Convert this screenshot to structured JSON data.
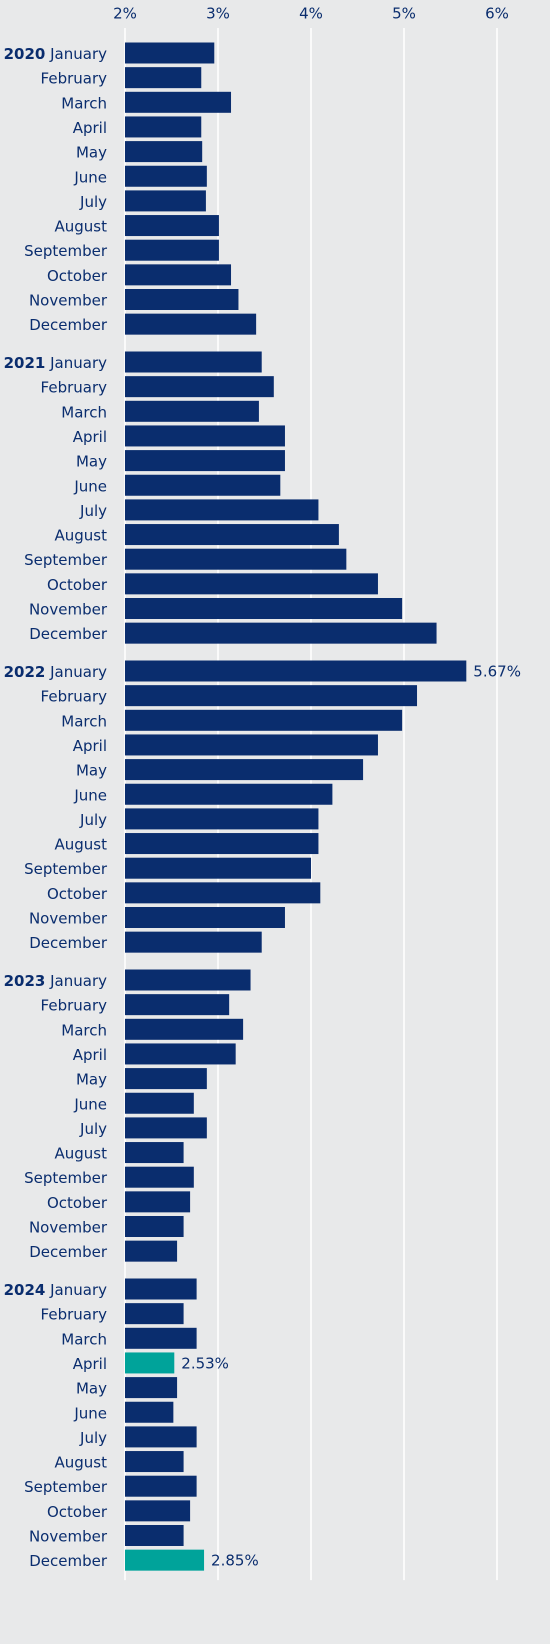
{
  "chart_data": {
    "type": "bar",
    "orientation": "horizontal",
    "color": "#0a2d6e",
    "grid": true,
    "xlim": [
      2,
      6
    ],
    "xticks": [
      {
        "value": 2,
        "label": "2%"
      },
      {
        "value": 3,
        "label": "3%"
      },
      {
        "value": 4,
        "label": "4%"
      },
      {
        "value": 5,
        "label": "5%"
      },
      {
        "value": 6,
        "label": "6%"
      }
    ],
    "groups": [
      {
        "name": "2020",
        "categories": [
          "January",
          "February",
          "March",
          "April",
          "May",
          "June",
          "July",
          "August",
          "September",
          "October",
          "November",
          "December"
        ],
        "values": [
          2.96,
          2.82,
          3.14,
          2.82,
          2.83,
          2.88,
          2.87,
          3.01,
          3.01,
          3.14,
          3.22,
          3.41
        ],
        "colors": [
          "#0a2d6e",
          "#0a2d6e",
          "#0a2d6e",
          "#0a2d6e",
          "#0a2d6e",
          "#0a2d6e",
          "#0a2d6e",
          "#0a2d6e",
          "#0a2d6e",
          "#0a2d6e",
          "#0a2d6e",
          "#0a2d6e"
        ],
        "value_labels": [
          null,
          null,
          null,
          null,
          null,
          null,
          null,
          null,
          null,
          null,
          null,
          null
        ]
      },
      {
        "name": "2021",
        "categories": [
          "January",
          "February",
          "March",
          "April",
          "May",
          "June",
          "July",
          "August",
          "September",
          "October",
          "November",
          "December"
        ],
        "values": [
          3.47,
          3.6,
          3.44,
          3.72,
          3.72,
          3.67,
          4.08,
          4.3,
          4.38,
          4.72,
          4.98,
          5.35
        ],
        "colors": [
          "#0a2d6e",
          "#0a2d6e",
          "#0a2d6e",
          "#0a2d6e",
          "#0a2d6e",
          "#0a2d6e",
          "#0a2d6e",
          "#0a2d6e",
          "#0a2d6e",
          "#0a2d6e",
          "#0a2d6e",
          "#0a2d6e"
        ],
        "value_labels": [
          null,
          null,
          null,
          null,
          null,
          null,
          null,
          null,
          null,
          null,
          null,
          null
        ]
      },
      {
        "name": "2022",
        "categories": [
          "January",
          "February",
          "March",
          "April",
          "May",
          "June",
          "July",
          "August",
          "September",
          "October",
          "November",
          "December"
        ],
        "values": [
          5.67,
          5.14,
          4.98,
          4.72,
          4.56,
          4.23,
          4.08,
          4.08,
          4.0,
          4.1,
          3.72,
          3.47
        ],
        "colors": [
          "#0a2d6e",
          "#0a2d6e",
          "#0a2d6e",
          "#0a2d6e",
          "#0a2d6e",
          "#0a2d6e",
          "#0a2d6e",
          "#0a2d6e",
          "#0a2d6e",
          "#0a2d6e",
          "#0a2d6e",
          "#0a2d6e"
        ],
        "value_labels": [
          "5.67%",
          null,
          null,
          null,
          null,
          null,
          null,
          null,
          null,
          null,
          null,
          null
        ]
      },
      {
        "name": "2023",
        "categories": [
          "January",
          "February",
          "March",
          "April",
          "May",
          "June",
          "July",
          "August",
          "September",
          "October",
          "November",
          "December"
        ],
        "values": [
          3.35,
          3.12,
          3.27,
          3.19,
          2.88,
          2.74,
          2.88,
          2.63,
          2.74,
          2.7,
          2.63,
          2.56
        ],
        "colors": [
          "#0a2d6e",
          "#0a2d6e",
          "#0a2d6e",
          "#0a2d6e",
          "#0a2d6e",
          "#0a2d6e",
          "#0a2d6e",
          "#0a2d6e",
          "#0a2d6e",
          "#0a2d6e",
          "#0a2d6e",
          "#0a2d6e"
        ],
        "value_labels": [
          null,
          null,
          null,
          null,
          null,
          null,
          null,
          null,
          null,
          null,
          null,
          null
        ]
      },
      {
        "name": "2024",
        "categories": [
          "January",
          "February",
          "March",
          "April",
          "May",
          "June",
          "July",
          "August",
          "September",
          "October",
          "November",
          "December"
        ],
        "values": [
          2.77,
          2.63,
          2.77,
          2.53,
          2.56,
          2.52,
          2.77,
          2.63,
          2.77,
          2.7,
          2.63,
          2.85
        ],
        "colors": [
          "#0a2d6e",
          "#0a2d6e",
          "#0a2d6e",
          "#00a39a",
          "#0a2d6e",
          "#0a2d6e",
          "#0a2d6e",
          "#0a2d6e",
          "#0a2d6e",
          "#0a2d6e",
          "#0a2d6e",
          "#00a39a"
        ],
        "value_labels": [
          null,
          null,
          null,
          "2.53%",
          null,
          null,
          null,
          null,
          null,
          null,
          null,
          "2.85%"
        ]
      }
    ]
  }
}
